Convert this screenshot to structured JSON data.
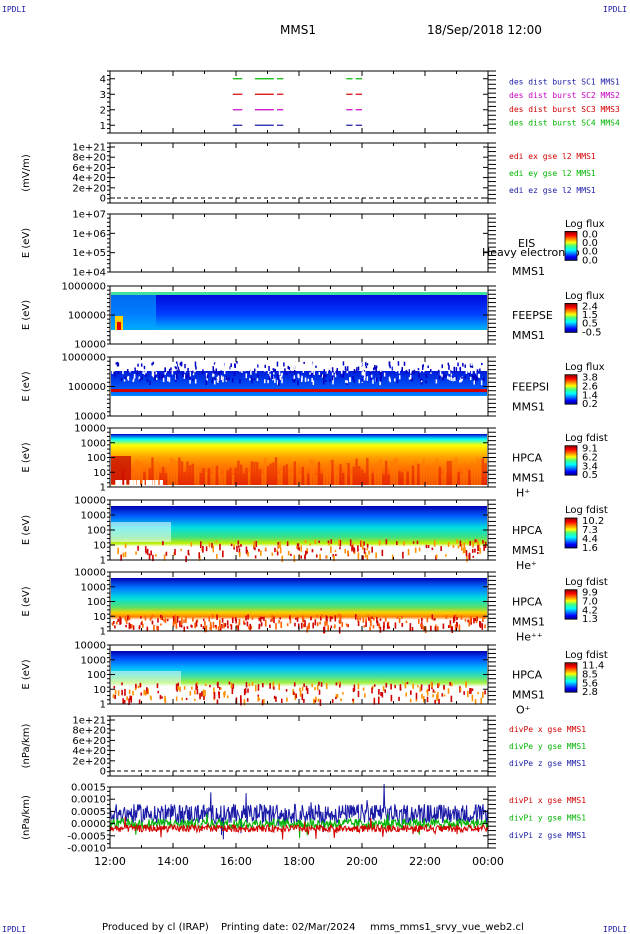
{
  "header": {
    "corner_tl": "IPDLI",
    "corner_tr": "IPDLI",
    "corner_bl": "IPDLI",
    "corner_br": "IPDLI",
    "spacecraft": "MMS1",
    "datetime": "18/Sep/2018 12:00"
  },
  "footer": {
    "produced": "Produced by cl (IRAP)",
    "printing": "Printing date: 02/Mar/2024",
    "file": "mms_mms1_srvy_vue_web2.cl"
  },
  "colors": {
    "mms1": "#1a1aa6",
    "mms2": "#c800c8",
    "mms3": "#d40000",
    "mms4": "#00b400"
  },
  "chart_data": [
    {
      "type": "line",
      "id": "burst",
      "ylabel": "",
      "ylim": [
        0.5,
        4.5
      ],
      "ytick_labels": [
        "4",
        "3",
        "2",
        "1"
      ],
      "legend": [
        "des dist burst SC1 MMS1",
        "des dist burst SC2 MMS2",
        "des dist burst SC3 MMS3",
        "des dist burst SC4 MMS4"
      ],
      "series": [
        {
          "level": 4,
          "color": "#00b400",
          "segments": [
            [
              15.9,
              16.2
            ],
            [
              16.6,
              17.2
            ],
            [
              17.3,
              17.5
            ],
            [
              19.5,
              19.7
            ],
            [
              19.8,
              20.0
            ]
          ]
        },
        {
          "level": 3,
          "color": "#d40000",
          "segments": [
            [
              15.9,
              16.2
            ],
            [
              16.6,
              17.2
            ],
            [
              17.3,
              17.5
            ],
            [
              19.5,
              19.7
            ],
            [
              19.8,
              20.0
            ]
          ]
        },
        {
          "level": 2,
          "color": "#c800c8",
          "segments": [
            [
              15.9,
              16.2
            ],
            [
              16.6,
              17.2
            ],
            [
              17.3,
              17.5
            ],
            [
              19.5,
              19.7
            ],
            [
              19.8,
              20.0
            ]
          ]
        },
        {
          "level": 1,
          "color": "#1a1aa6",
          "segments": [
            [
              15.9,
              16.2
            ],
            [
              16.6,
              17.2
            ],
            [
              17.3,
              17.5
            ],
            [
              19.5,
              19.7
            ],
            [
              19.8,
              20.0
            ]
          ]
        }
      ]
    },
    {
      "type": "line",
      "id": "edi",
      "ylabel": "(mV/m)",
      "ylim": [
        0,
        1e+21
      ],
      "ytick_labels": [
        "1e+21",
        "8e+20",
        "6e+20",
        "4e+20",
        "2e+20",
        "0"
      ],
      "legend": [
        "edi ex gse l2 MMS1",
        "edi ey gse l2 MMS1",
        "edi ez gse l2 MMS1"
      ]
    },
    {
      "type": "heatmap",
      "id": "eis",
      "ylabel": "E (eV)",
      "ytick_labels": [
        "1e+07",
        "1e+06",
        "1e+05",
        "1e+04"
      ],
      "inst": "EIS",
      "overlay": "Heavy electron to",
      "sc": "MMS1",
      "cb_title": "Log flux",
      "cb_ticks": [
        "0.0",
        "0.0",
        "0.0",
        "0.0"
      ]
    },
    {
      "type": "heatmap",
      "id": "feepse",
      "ylabel": "E (eV)",
      "ytick_labels": [
        "1000000",
        "100000",
        "10000"
      ],
      "inst": "FEEPSE",
      "sc": "MMS1",
      "cb_title": "Log flux",
      "cb_ticks": [
        "2.4",
        "1.5",
        "0.5",
        "-0.5"
      ]
    },
    {
      "type": "heatmap",
      "id": "feepsi",
      "ylabel": "E (eV)",
      "ytick_labels": [
        "1000000",
        "100000",
        "10000"
      ],
      "inst": "FEEPSI",
      "sc": "MMS1",
      "cb_title": "Log flux",
      "cb_ticks": [
        "3.8",
        "2.6",
        "1.4",
        "0.2"
      ]
    },
    {
      "type": "heatmap",
      "id": "hpca_h",
      "ylabel": "E (eV)",
      "ytick_labels": [
        "10000",
        "1000",
        "100",
        "10",
        "1"
      ],
      "inst": "HPCA",
      "sc": "MMS1",
      "species": "H⁺",
      "cb_title": "Log fdist",
      "cb_ticks": [
        "9.1",
        "6.2",
        "3.4",
        "0.5"
      ]
    },
    {
      "type": "heatmap",
      "id": "hpca_he",
      "ylabel": "E (eV)",
      "ytick_labels": [
        "10000",
        "1000",
        "100",
        "10",
        "1"
      ],
      "inst": "HPCA",
      "sc": "MMS1",
      "species": "He⁺",
      "cb_title": "Log fdist",
      "cb_ticks": [
        "10.2",
        "7.3",
        "4.4",
        "1.6"
      ]
    },
    {
      "type": "heatmap",
      "id": "hpca_hepp",
      "ylabel": "E (eV)",
      "ytick_labels": [
        "10000",
        "1000",
        "100",
        "10",
        "1"
      ],
      "inst": "HPCA",
      "sc": "MMS1",
      "species": "He⁺⁺",
      "cb_title": "Log fdist",
      "cb_ticks": [
        "9.9",
        "7.0",
        "4.2",
        "1.3"
      ]
    },
    {
      "type": "heatmap",
      "id": "hpca_o",
      "ylabel": "E (eV)",
      "ytick_labels": [
        "10000",
        "1000",
        "100",
        "10",
        "1"
      ],
      "inst": "HPCA",
      "sc": "MMS1",
      "species": "O⁺",
      "cb_title": "Log fdist",
      "cb_ticks": [
        "11.4",
        "8.5",
        "5.6",
        "2.8"
      ]
    },
    {
      "type": "line",
      "id": "divpe",
      "ylabel": "(nPa/km)",
      "ylim": [
        0,
        1e+21
      ],
      "ytick_labels": [
        "1e+21",
        "8e+20",
        "6e+20",
        "4e+20",
        "2e+20",
        "0"
      ],
      "legend": [
        "divPe x gse MMS1",
        "divPe y gse MMS1",
        "divPe z gse MMS1"
      ]
    },
    {
      "type": "line",
      "id": "divpi",
      "ylabel": "(nPa/km)",
      "ylim": [
        -0.001,
        0.0015
      ],
      "ytick_labels": [
        "0.0015",
        "0.0010",
        "0.0005",
        "0.0000",
        "-0.0005",
        "-0.0010"
      ],
      "legend": [
        "divPi x gse MMS1",
        "divPi y gse MMS1",
        "divPi z gse MMS1"
      ],
      "series_levels": {
        "z": [
          0.0004,
          0.0003
        ],
        "y": [
          0.0,
          0.00015
        ],
        "x": [
          -0.0002,
          0.0001
        ]
      }
    }
  ],
  "time_axis": {
    "tick_labels": [
      "12:00",
      "14:00",
      "16:00",
      "18:00",
      "20:00",
      "22:00",
      "00:00"
    ]
  }
}
